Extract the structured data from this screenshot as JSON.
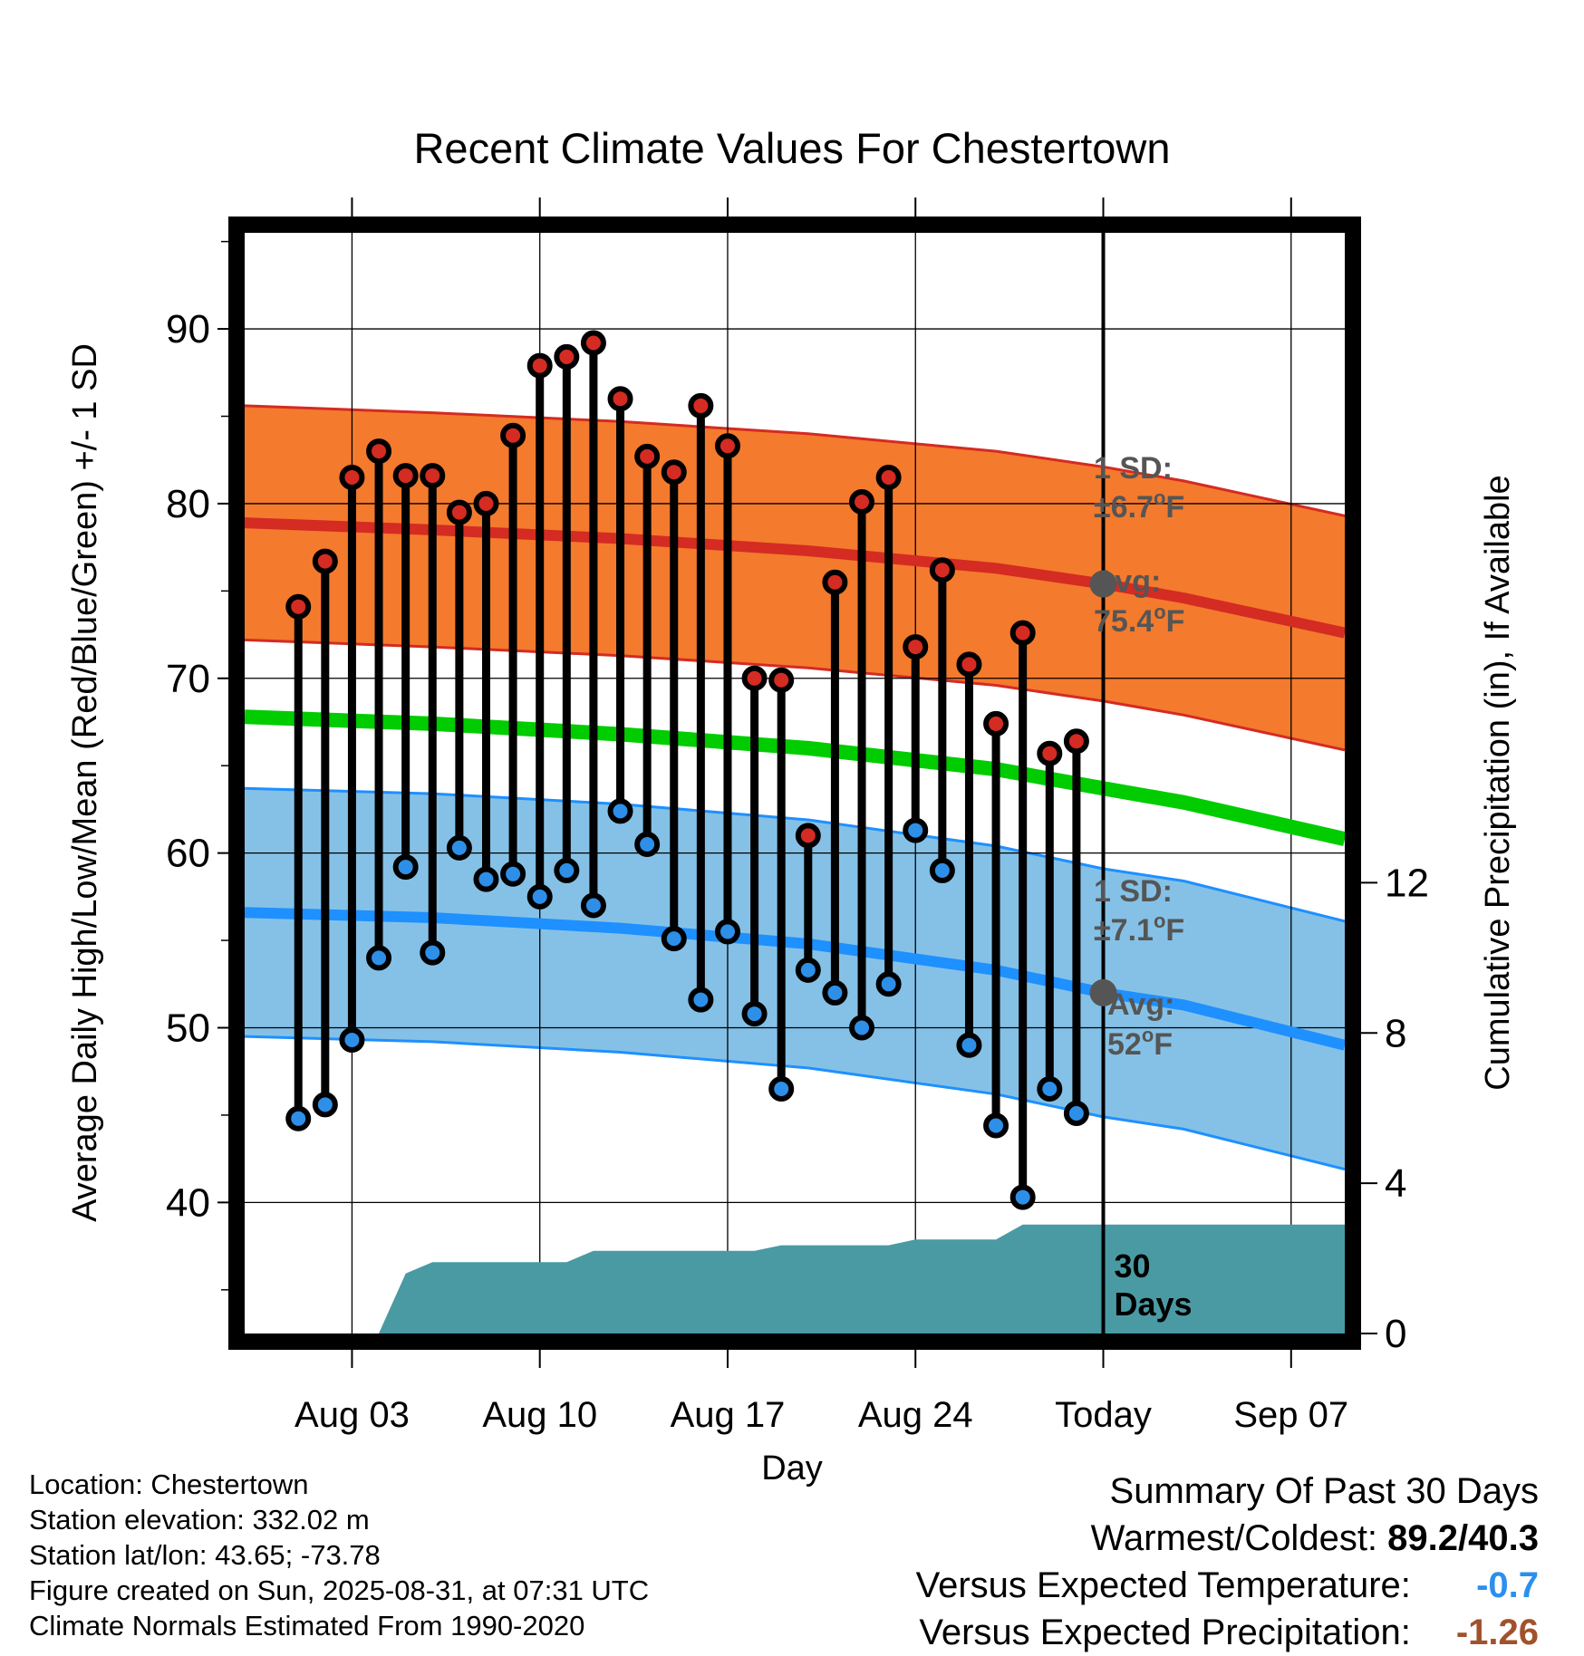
{
  "chart_data": {
    "type": "line",
    "title": "Recent Climate Values For Chestertown",
    "xlabel": "Day",
    "ylabel": "Average Daily High/Low/Mean (Red/Blue/Green) +/- 1 SD",
    "y2label": "Cumulative Precipitation (in), If Available",
    "x_tick_labels": [
      "Aug 03",
      "Aug 10",
      "Aug 17",
      "Aug 24",
      "Today",
      "Sep 07"
    ],
    "x_tick_dates": [
      "2025-08-03",
      "2025-08-10",
      "2025-08-17",
      "2025-08-24",
      "2025-08-31",
      "2025-09-07"
    ],
    "xlim": [
      "2025-07-30",
      "2025-09-09"
    ],
    "ylim": [
      32.5,
      95.5
    ],
    "y_ticks": [
      40,
      50,
      60,
      70,
      80,
      90
    ],
    "y2lim": [
      0,
      29.3
    ],
    "y2_ticks": [
      0,
      4,
      8,
      12
    ],
    "grid": true,
    "today_marker": {
      "date": "2025-08-31",
      "label_line1": "30",
      "label_line2": "Days"
    },
    "observed": {
      "dates": [
        "2025-08-01",
        "2025-08-02",
        "2025-08-03",
        "2025-08-04",
        "2025-08-05",
        "2025-08-06",
        "2025-08-07",
        "2025-08-08",
        "2025-08-09",
        "2025-08-10",
        "2025-08-11",
        "2025-08-12",
        "2025-08-13",
        "2025-08-14",
        "2025-08-15",
        "2025-08-16",
        "2025-08-17",
        "2025-08-18",
        "2025-08-19",
        "2025-08-20",
        "2025-08-21",
        "2025-08-22",
        "2025-08-23",
        "2025-08-24",
        "2025-08-25",
        "2025-08-26",
        "2025-08-27",
        "2025-08-28",
        "2025-08-29",
        "2025-08-30"
      ],
      "high": [
        74.1,
        76.7,
        81.5,
        83.0,
        81.6,
        81.6,
        79.5,
        80.0,
        83.9,
        87.9,
        88.4,
        89.2,
        86.0,
        82.7,
        81.8,
        85.6,
        83.3,
        70.0,
        69.9,
        61.0,
        75.5,
        80.1,
        81.5,
        71.8,
        76.2,
        70.8,
        67.4,
        72.6,
        65.7,
        66.4
      ],
      "low": [
        44.8,
        45.6,
        49.3,
        54.0,
        59.2,
        54.3,
        60.3,
        58.5,
        58.8,
        57.5,
        59.0,
        57.0,
        62.4,
        60.5,
        55.1,
        51.6,
        55.5,
        50.8,
        46.5,
        53.3,
        52.0,
        50.0,
        52.5,
        61.3,
        59.0,
        49.0,
        44.4,
        40.3,
        46.5,
        45.1
      ]
    },
    "normals": {
      "dates": [
        "2025-07-30",
        "2025-08-06",
        "2025-08-13",
        "2025-08-20",
        "2025-08-27",
        "2025-08-31",
        "2025-09-03",
        "2025-09-09"
      ],
      "high_mean": [
        78.9,
        78.5,
        78.0,
        77.3,
        76.3,
        75.4,
        74.6,
        72.6
      ],
      "high_sd": 6.7,
      "low_mean": [
        56.6,
        56.3,
        55.7,
        54.8,
        53.3,
        52.0,
        51.3,
        49.0
      ],
      "low_sd": 7.1,
      "mean": [
        67.8,
        67.4,
        66.8,
        66.0,
        64.8,
        63.7,
        62.9,
        60.8
      ]
    },
    "precip": {
      "dates": [
        "2025-07-30",
        "2025-08-04",
        "2025-08-05",
        "2025-08-06",
        "2025-08-11",
        "2025-08-12",
        "2025-08-18",
        "2025-08-19",
        "2025-08-23",
        "2025-08-24",
        "2025-08-27",
        "2025-08-28",
        "2025-09-09"
      ],
      "cumulative": [
        0,
        0,
        1.6,
        1.9,
        1.9,
        2.2,
        2.2,
        2.35,
        2.35,
        2.5,
        2.5,
        2.9,
        2.9
      ]
    },
    "annotations": {
      "high_sd_line1": "1 SD:",
      "high_sd_line2": "±6.7",
      "high_avg_line1": "Avg:",
      "high_avg_line2": "75.4",
      "low_sd_line1": "1 SD:",
      "low_sd_line2": "±7.1",
      "low_avg_line1": "Avg:",
      "low_avg_line2": "52",
      "degree_sign": "o",
      "unit_f": "F"
    },
    "colors": {
      "high_band": "#F47A2D",
      "high_line": "#D42B23",
      "low_band": "#85C1E6",
      "low_line": "#1E90FF",
      "mean_line": "#00CC00",
      "precip": "#4A9AA4",
      "high_dot": "#D42B23",
      "low_dot": "#2D8FE8",
      "annotation": "#555555"
    }
  },
  "footer": {
    "location": "Location: Chestertown",
    "elevation": "Station elevation: 332.02 m",
    "latlon": "Station lat/lon: 43.65; -73.78",
    "created": "Figure created on Sun, 2025-08-31, at 07:31 UTC",
    "normals": "Climate Normals Estimated From 1990-2020"
  },
  "summary": {
    "title": "Summary Of Past 30 Days",
    "warm_cold_label": "Warmest/Coldest:",
    "warm_cold_value": "89.2/40.3",
    "temp_label": "Versus Expected Temperature:",
    "temp_value": "-0.7",
    "temp_color": "#2B8FF0",
    "precip_label": "Versus Expected Precipitation:",
    "precip_value": "-1.26",
    "precip_color": "#A0522D"
  }
}
